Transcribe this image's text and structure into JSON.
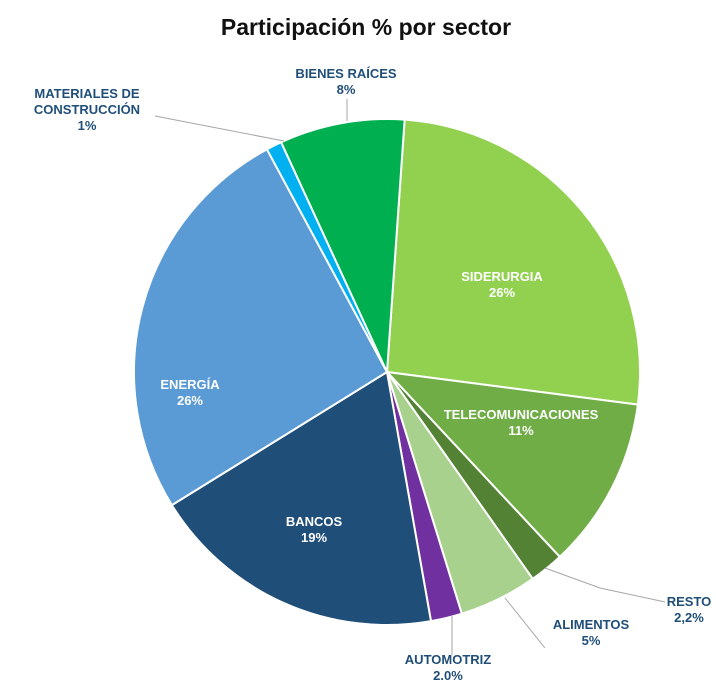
{
  "chart_data": {
    "type": "pie",
    "title": "Participación % por sector",
    "categories": [
      "SIDERURGIA",
      "TELECOMUNICACIONES",
      "RESTO",
      "ALIMENTOS",
      "AUTOMOTRIZ",
      "BANCOS",
      "ENERGÍA",
      "MATERIALES DE CONSTRUCCIÓN",
      "BIENES RAÍCES"
    ],
    "values": [
      26,
      11,
      2.2,
      5,
      2.0,
      19,
      26,
      1,
      8
    ],
    "value_labels": [
      "26%",
      "11%",
      "2,2%",
      "5%",
      "2.0%",
      "19%",
      "26%",
      "1%",
      "8%"
    ],
    "colors": [
      "#92d050",
      "#70ad47",
      "#548235",
      "#a9d18e",
      "#7030a0",
      "#1f4e79",
      "#5b9bd5",
      "#00b0f0",
      "#00b050"
    ]
  }
}
